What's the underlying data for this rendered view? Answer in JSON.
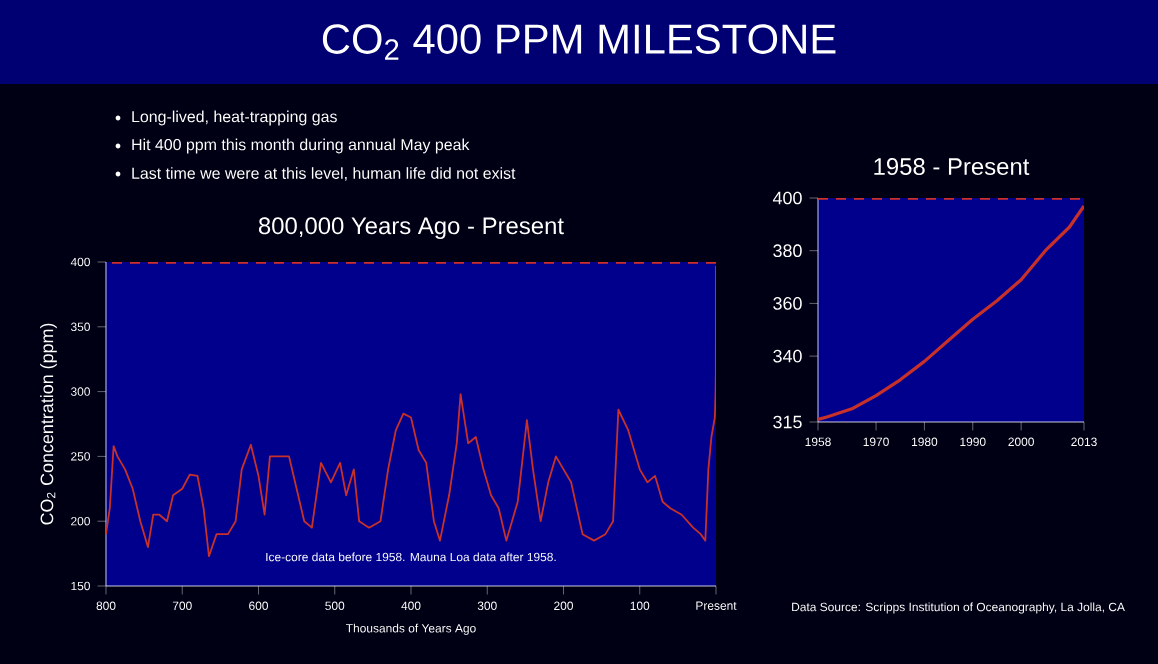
{
  "chart_data": [
    {
      "type": "other",
      "title": "CO$_{2}$ 400 PPM MILESTONE",
      "annotations": [
        "Long-lived, heat-trapping gas",
        "Hit 400 ppm this month during annual May peak",
        "Last time we were at this level, human life did not exist",
        "Data Source: Scripps Institution of Oceanography, La Jolla, CA"
      ]
    },
    {
      "type": "line",
      "title": "800,000 Years Ago - Present",
      "xlabel": "Thousands of Years Ago",
      "ylabel": "CO$_{2}$ Concentration (ppm)",
      "xlim": [
        800,
        0
      ],
      "ylim": [
        150,
        400
      ],
      "xticks": [
        800,
        700,
        600,
        500,
        400,
        300,
        200,
        100,
        {
          "value": 0,
          "label": "Present"
        }
      ],
      "yticks": [
        150,
        200,
        250,
        300,
        350,
        400
      ],
      "ref_lines": [
        {
          "axis": "y",
          "value": 400,
          "color": "#d0302a",
          "line_style": "dashed"
        }
      ],
      "annotations": [
        "Ice-core data before 1958. Mauna Loa data after 1958."
      ],
      "series": [
        {
          "color": "#c8302a",
          "x": [
            800,
            795,
            790,
            785,
            775,
            765,
            755,
            745,
            738,
            730,
            720,
            712,
            700,
            690,
            680,
            672,
            665,
            655,
            640,
            630,
            622,
            610,
            600,
            592,
            585,
            575,
            560,
            550,
            540,
            530,
            518,
            505,
            493,
            485,
            475,
            468,
            455,
            440,
            430,
            420,
            410,
            400,
            390,
            380,
            370,
            362,
            350,
            340,
            335,
            325,
            315,
            305,
            295,
            285,
            275,
            260,
            248,
            240,
            230,
            220,
            210,
            200,
            190,
            175,
            160,
            145,
            135,
            128,
            115,
            100,
            90,
            80,
            70,
            60,
            45,
            30,
            20,
            14,
            10,
            6,
            3,
            1.5,
            0.5,
            0.2,
            0
          ],
          "values": [
            190,
            210,
            258,
            250,
            240,
            225,
            200,
            180,
            205,
            205,
            200,
            220,
            225,
            236,
            235,
            210,
            173,
            190,
            190,
            200,
            240,
            259,
            235,
            205,
            250,
            250,
            250,
            225,
            200,
            195,
            245,
            230,
            245,
            220,
            240,
            200,
            195,
            200,
            240,
            270,
            283,
            280,
            255,
            245,
            200,
            185,
            220,
            260,
            298,
            260,
            265,
            240,
            220,
            210,
            185,
            215,
            278,
            240,
            200,
            230,
            250,
            240,
            230,
            190,
            185,
            190,
            200,
            286,
            270,
            240,
            230,
            235,
            215,
            210,
            205,
            195,
            190,
            185,
            240,
            265,
            275,
            280,
            300,
            315,
            397
          ]
        }
      ]
    },
    {
      "type": "line",
      "title": "1958 - Present",
      "xlim": [
        1958,
        2013
      ],
      "ylim": [
        315,
        400
      ],
      "xticks": [
        1958,
        1970,
        1980,
        1990,
        2000,
        2013
      ],
      "yticks": [
        315,
        340,
        360,
        380,
        400
      ],
      "ref_lines": [
        {
          "axis": "y",
          "value": 400,
          "color": "#d0302a",
          "line_style": "dashed"
        }
      ],
      "series": [
        {
          "color": "#c8302a",
          "x": [
            1958,
            1960,
            1965,
            1970,
            1975,
            1980,
            1985,
            1990,
            1995,
            2000,
            2005,
            2010,
            2013
          ],
          "values": [
            316,
            317,
            320,
            325,
            331,
            338,
            346,
            354,
            361,
            369,
            380,
            389,
            397
          ]
        }
      ]
    }
  ]
}
